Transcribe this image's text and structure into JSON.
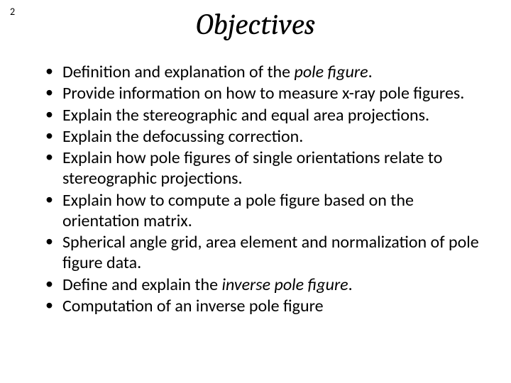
{
  "page_number": "2",
  "title": "Objectives",
  "bullets": [
    {
      "pre": "Definition and explanation of the ",
      "italic": "pole figure",
      "post": "."
    },
    {
      "pre": "Provide information on how to measure x-ray pole figures.",
      "italic": "",
      "post": ""
    },
    {
      "pre": "Explain the stereographic and equal area projections.",
      "italic": "",
      "post": ""
    },
    {
      "pre": "Explain the defocussing correction.",
      "italic": "",
      "post": ""
    },
    {
      "pre": "Explain how pole figures of single orientations relate to stereographic projections.",
      "italic": "",
      "post": ""
    },
    {
      "pre": "Explain how to compute a pole figure based on the orientation matrix.",
      "italic": "",
      "post": ""
    },
    {
      "pre": "Spherical angle grid, area element and normalization of pole figure data.",
      "italic": "",
      "post": ""
    },
    {
      "pre": "Define and explain the ",
      "italic": "inverse pole figure",
      "post": "."
    },
    {
      "pre": "Computation of an inverse pole figure",
      "italic": "",
      "post": ""
    }
  ],
  "styles": {
    "background_color": "#ffffff",
    "text_color": "#000000",
    "title_font": "Cambria",
    "title_fontsize": 42,
    "title_style": "italic",
    "body_font": "Calibri",
    "body_fontsize": 24,
    "page_number_fontsize": 14
  }
}
